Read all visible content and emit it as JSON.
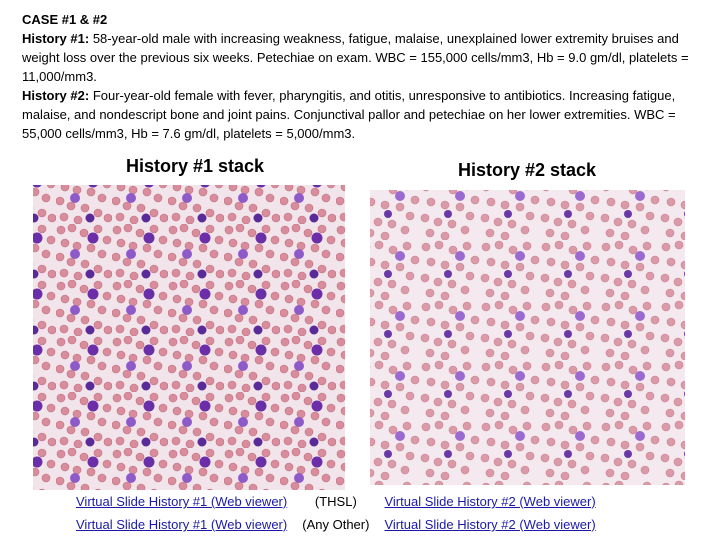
{
  "header": {
    "title": "CASE #1 & #2"
  },
  "histories": [
    {
      "label": "History #1:",
      "text": "58-year-old male with increasing weakness, fatigue, malaise, unexplained lower extremity bruises and weight loss over the previous six weeks. Petechiae on exam. WBC = 155,000 cells/mm3, Hb = 9.0 gm/dl, platelets = 11,000/mm3."
    },
    {
      "label": "History #2:",
      "text": "Four-year-old female with fever, pharyngitis, and otitis, unresponsive to antibiotics. Increasing fatigue, malaise, and nondescript bone and joint pains. Conjunctival pallor and petechiae on her lower extremities. WBC = 55,000 cells/mm3, Hb = 7.6 gm/dl, platelets = 5,000/mm3."
    }
  ],
  "images": [
    {
      "caption": "History #1 stack"
    },
    {
      "caption": "History #2 stack"
    }
  ],
  "links": {
    "rows": [
      [
        "Virtual Slide History #1 (Web viewer)",
        "(THSL)",
        "Virtual Slide History #2 (Web viewer)"
      ],
      [
        "Virtual Slide History #1 (Web viewer)",
        "(Any Other)",
        "Virtual Slide History #2 (Web viewer)"
      ]
    ]
  }
}
